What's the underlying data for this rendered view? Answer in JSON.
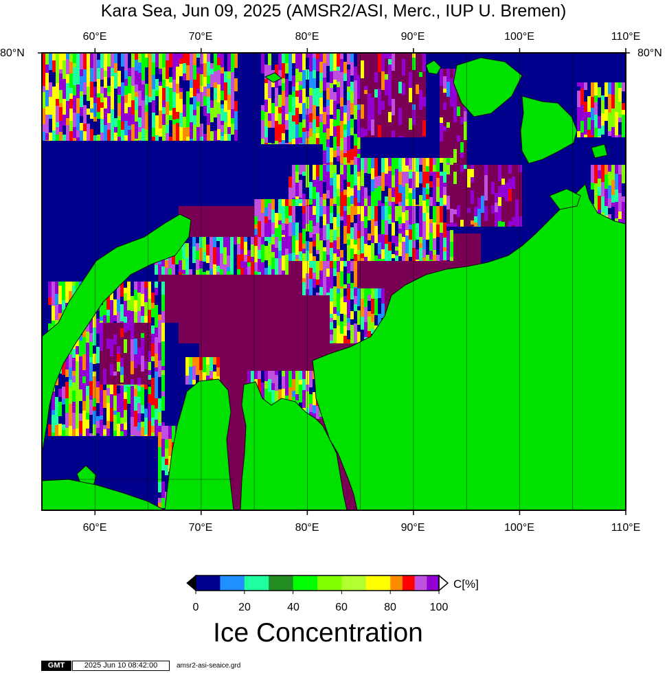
{
  "title": "Kara Sea, Jun 09, 2025 (AMSR2/ASI, Merc., IUP U. Bremen)",
  "map": {
    "lon_range": [
      55,
      110
    ],
    "lat_top": "80",
    "lon_ticks": [
      "60°E",
      "70°E",
      "80°E",
      "90°E",
      "100°E",
      "110°E"
    ],
    "lat_label_left": "80°N",
    "lat_label_right": "80°N",
    "colors": {
      "open_water": "#00008c",
      "land": "#00e100",
      "high_ice": "#7a0055",
      "coastline": "#0a0a0a",
      "gridline": "#000000"
    }
  },
  "colorbar": {
    "unit": "C[%]",
    "tick_labels": [
      "0",
      "20",
      "40",
      "60",
      "80",
      "100"
    ],
    "bins": [
      {
        "from": 0,
        "to": 10,
        "color": "#00008c"
      },
      {
        "from": 10,
        "to": 20,
        "color": "#1e90ff"
      },
      {
        "from": 20,
        "to": 30,
        "color": "#1effa0"
      },
      {
        "from": 30,
        "to": 40,
        "color": "#228b22"
      },
      {
        "from": 40,
        "to": 50,
        "color": "#00ff00"
      },
      {
        "from": 50,
        "to": 60,
        "color": "#7fff00"
      },
      {
        "from": 60,
        "to": 70,
        "color": "#b4ff32"
      },
      {
        "from": 70,
        "to": 80,
        "color": "#ffff00"
      },
      {
        "from": 80,
        "to": 85,
        "color": "#ff8c00"
      },
      {
        "from": 85,
        "to": 90,
        "color": "#ff0000"
      },
      {
        "from": 90,
        "to": 95,
        "color": "#c050e0"
      },
      {
        "from": 95,
        "to": 100,
        "color": "#9400d3"
      }
    ],
    "title": "Ice Concentration"
  },
  "footer": {
    "logo": "GMT",
    "timestamp": "2025 Jun 10 08:42:00",
    "grid_file": "amsr2-asi-seaice.grd"
  }
}
